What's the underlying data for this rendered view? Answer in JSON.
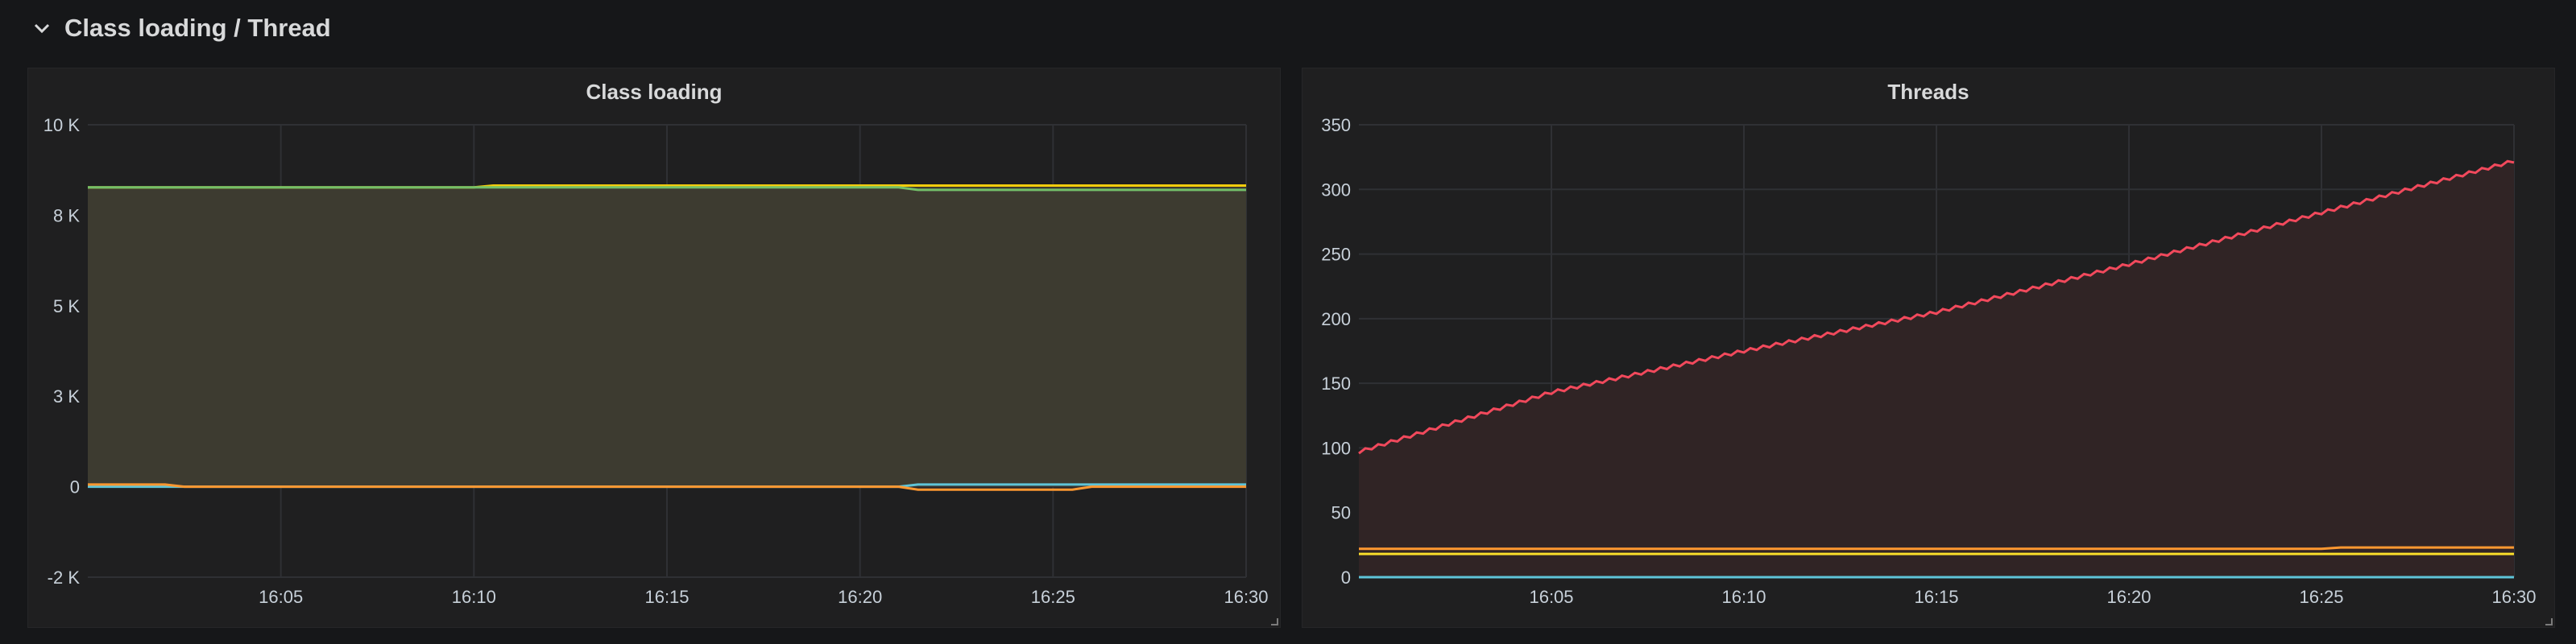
{
  "row": {
    "title": "Class loading / Thread"
  },
  "panels": [
    {
      "title": "Class loading",
      "chart_data": {
        "type": "area",
        "title": "Class loading",
        "x_ticks": [
          "16:05",
          "16:10",
          "16:15",
          "16:20",
          "16:25",
          "16:30"
        ],
        "x_range": [
          "16:00",
          "16:30"
        ],
        "y_ticks": [
          "-2 K",
          "0",
          "3 K",
          "5 K",
          "8 K",
          "10 K"
        ],
        "ylim": [
          -2500,
          10000
        ],
        "grid": true,
        "series": [
          {
            "color": "#f2cc0c",
            "fill": "#3d3b30",
            "x": [
              "16:00",
              "16:10",
              "16:10.5",
              "16:21",
              "16:21.5",
              "16:30"
            ],
            "y": [
              8270,
              8270,
              8320,
              8320,
              8320,
              8320
            ]
          },
          {
            "color": "#73bf69",
            "x": [
              "16:00",
              "16:21",
              "16:21.5",
              "16:30"
            ],
            "y": [
              8270,
              8270,
              8200,
              8200
            ]
          },
          {
            "color": "#5ec4d8",
            "x": [
              "16:00",
              "16:02",
              "16:02.5",
              "16:21",
              "16:21.5",
              "16:30"
            ],
            "y": [
              0,
              0,
              0,
              0,
              60,
              60
            ]
          },
          {
            "color": "#ff9830",
            "x": [
              "16:00",
              "16:02",
              "16:02.5",
              "16:21",
              "16:21.5",
              "16:25.5",
              "16:26",
              "16:30"
            ],
            "y": [
              60,
              60,
              0,
              0,
              -80,
              -80,
              0,
              0
            ]
          }
        ]
      }
    },
    {
      "title": "Threads",
      "chart_data": {
        "type": "area",
        "title": "Threads",
        "x_ticks": [
          "16:05",
          "16:10",
          "16:15",
          "16:20",
          "16:25",
          "16:30"
        ],
        "x_range": [
          "16:00",
          "16:30"
        ],
        "y_ticks": [
          "0",
          "50",
          "100",
          "150",
          "200",
          "250",
          "300",
          "350"
        ],
        "ylim": [
          0,
          350
        ],
        "grid": true,
        "series": [
          {
            "color": "#f2495c",
            "fill": "#302425",
            "x": [
              "16:00",
              "16:05",
              "16:10",
              "16:15",
              "16:20",
              "16:25",
              "16:30"
            ],
            "y": [
              97,
              143,
              175,
              205,
              242,
              282,
              322
            ]
          },
          {
            "color": "#ff9830",
            "x": [
              "16:00",
              "16:25",
              "16:25.5",
              "16:30"
            ],
            "y": [
              22,
              22,
              23,
              23
            ]
          },
          {
            "color": "#fade2a",
            "x": [
              "16:00",
              "16:30"
            ],
            "y": [
              18,
              18
            ]
          },
          {
            "color": "#5ec4d8",
            "x": [
              "16:00",
              "16:30"
            ],
            "y": [
              0,
              0
            ]
          }
        ]
      }
    }
  ]
}
